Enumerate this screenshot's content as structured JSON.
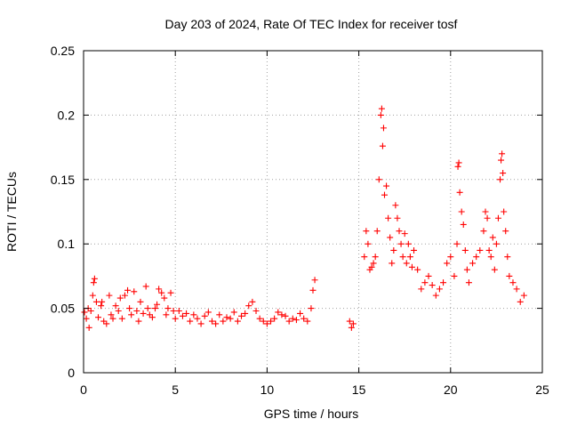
{
  "chart_data": {
    "type": "scatter",
    "title": "Day 203 of 2024, Rate Of TEC Index for receiver tosf",
    "xlabel": "GPS time / hours",
    "ylabel": "ROTI / TECUs",
    "xlim": [
      0,
      25
    ],
    "ylim": [
      0,
      0.25
    ],
    "xticks": [
      "0",
      "5",
      "10",
      "15",
      "20",
      "25"
    ],
    "yticks": [
      "0",
      "0.05",
      "0.1",
      "0.15",
      "0.2",
      "0.25"
    ],
    "grid": true,
    "marker": "plus",
    "point_color": "#ff0000",
    "series": [
      {
        "name": "",
        "x": [
          0.05,
          0.15,
          0.25,
          0.3,
          0.4,
          0.5,
          0.55,
          0.6,
          0.7,
          0.8,
          0.95,
          1.0,
          1.1,
          1.25,
          1.4,
          1.5,
          1.6,
          1.75,
          1.9,
          2.0,
          2.1,
          2.25,
          2.4,
          2.5,
          2.6,
          2.75,
          2.9,
          3.0,
          3.1,
          3.25,
          3.4,
          3.5,
          3.6,
          3.75,
          3.9,
          4.0,
          4.1,
          4.25,
          4.4,
          4.5,
          4.6,
          4.75,
          4.9,
          5.0,
          5.2,
          5.4,
          5.6,
          5.8,
          6.0,
          6.2,
          6.4,
          6.6,
          6.8,
          7.0,
          7.2,
          7.4,
          7.6,
          7.8,
          8.0,
          8.2,
          8.4,
          8.6,
          8.8,
          9.0,
          9.2,
          9.4,
          9.6,
          9.8,
          10.0,
          10.2,
          10.4,
          10.6,
          10.8,
          11.0,
          11.2,
          11.4,
          11.6,
          11.8,
          12.0,
          12.2,
          12.4,
          12.5,
          12.6,
          14.5,
          14.6,
          14.7,
          15.3,
          15.4,
          15.5,
          15.6,
          15.7,
          15.8,
          15.9,
          16.0,
          16.1,
          16.2,
          16.25,
          16.3,
          16.35,
          16.4,
          16.5,
          16.6,
          16.7,
          16.8,
          16.9,
          17.0,
          17.1,
          17.2,
          17.3,
          17.4,
          17.5,
          17.6,
          17.7,
          17.8,
          17.9,
          18.0,
          18.2,
          18.4,
          18.6,
          18.8,
          19.0,
          19.2,
          19.4,
          19.6,
          19.8,
          20.0,
          20.2,
          20.35,
          20.4,
          20.45,
          20.5,
          20.6,
          20.7,
          20.8,
          20.9,
          21.0,
          21.2,
          21.4,
          21.6,
          21.8,
          21.9,
          22.0,
          22.1,
          22.2,
          22.3,
          22.4,
          22.5,
          22.6,
          22.7,
          22.75,
          22.8,
          22.85,
          22.9,
          23.0,
          23.1,
          23.2,
          23.4,
          23.6,
          23.8,
          24.0
        ],
        "y": [
          0.047,
          0.042,
          0.05,
          0.035,
          0.048,
          0.06,
          0.07,
          0.073,
          0.055,
          0.043,
          0.052,
          0.055,
          0.04,
          0.038,
          0.06,
          0.045,
          0.042,
          0.052,
          0.048,
          0.058,
          0.042,
          0.06,
          0.064,
          0.05,
          0.045,
          0.063,
          0.048,
          0.04,
          0.055,
          0.046,
          0.067,
          0.05,
          0.045,
          0.043,
          0.05,
          0.053,
          0.065,
          0.062,
          0.058,
          0.045,
          0.05,
          0.062,
          0.048,
          0.042,
          0.048,
          0.044,
          0.046,
          0.04,
          0.045,
          0.042,
          0.038,
          0.044,
          0.047,
          0.04,
          0.038,
          0.045,
          0.04,
          0.043,
          0.042,
          0.047,
          0.04,
          0.044,
          0.046,
          0.052,
          0.055,
          0.048,
          0.042,
          0.04,
          0.038,
          0.04,
          0.042,
          0.047,
          0.045,
          0.044,
          0.04,
          0.042,
          0.041,
          0.046,
          0.042,
          0.04,
          0.05,
          0.064,
          0.072,
          0.04,
          0.035,
          0.038,
          0.09,
          0.11,
          0.1,
          0.08,
          0.082,
          0.085,
          0.09,
          0.11,
          0.15,
          0.2,
          0.205,
          0.176,
          0.19,
          0.138,
          0.145,
          0.12,
          0.105,
          0.085,
          0.095,
          0.13,
          0.12,
          0.11,
          0.1,
          0.09,
          0.108,
          0.085,
          0.1,
          0.09,
          0.082,
          0.095,
          0.08,
          0.065,
          0.07,
          0.075,
          0.068,
          0.06,
          0.065,
          0.07,
          0.085,
          0.09,
          0.075,
          0.1,
          0.16,
          0.163,
          0.14,
          0.125,
          0.115,
          0.095,
          0.08,
          0.07,
          0.085,
          0.09,
          0.095,
          0.11,
          0.125,
          0.12,
          0.095,
          0.09,
          0.105,
          0.08,
          0.1,
          0.12,
          0.15,
          0.165,
          0.17,
          0.155,
          0.125,
          0.11,
          0.09,
          0.075,
          0.07,
          0.065,
          0.055,
          0.06
        ]
      }
    ]
  }
}
